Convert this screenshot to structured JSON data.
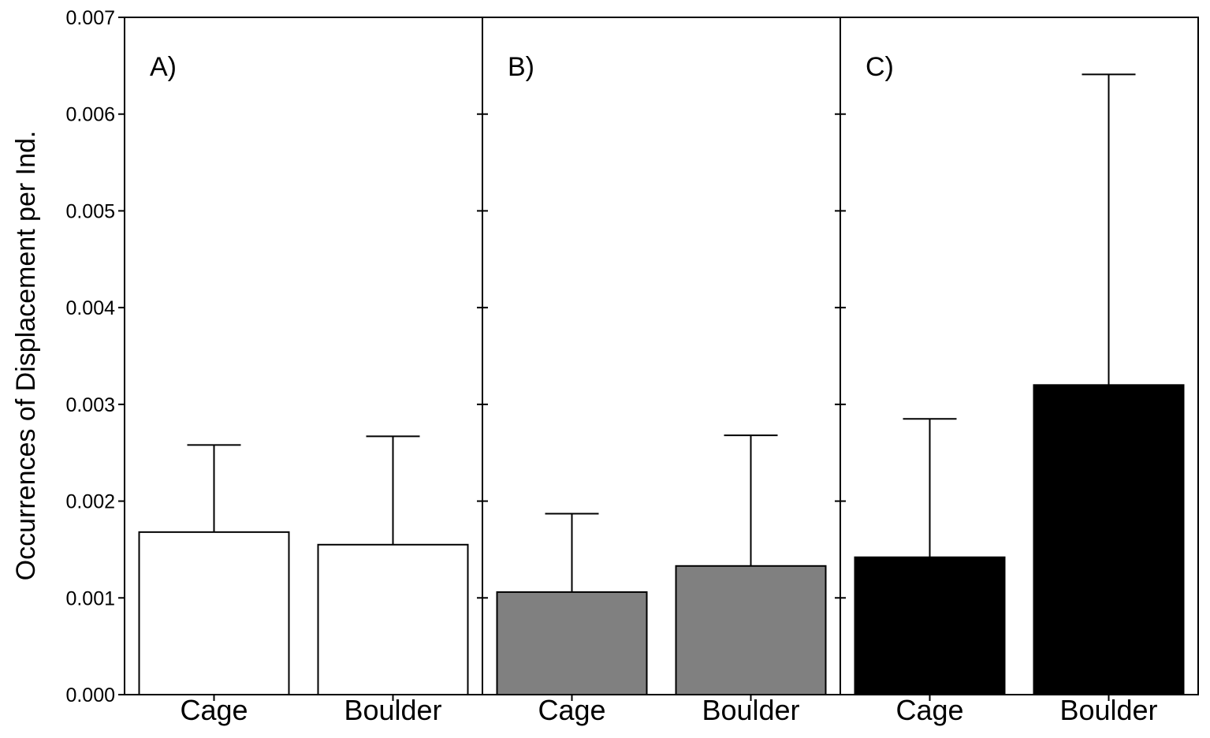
{
  "chart_data": {
    "type": "bar",
    "ylabel": "Occurrences of Displacement per Ind.",
    "ylim": [
      0,
      0.007
    ],
    "yticks": [
      "0.000",
      "0.001",
      "0.002",
      "0.003",
      "0.004",
      "0.005",
      "0.006",
      "0.007"
    ],
    "panels": [
      {
        "label": "A)",
        "fill": "#ffffff",
        "categories": [
          "Cage",
          "Boulder"
        ],
        "values": [
          0.00168,
          0.00155
        ],
        "error_upper": [
          0.00258,
          0.00267
        ]
      },
      {
        "label": "B)",
        "fill": "#808080",
        "categories": [
          "Cage",
          "Boulder"
        ],
        "values": [
          0.00106,
          0.00133
        ],
        "error_upper": [
          0.00187,
          0.00268
        ]
      },
      {
        "label": "C)",
        "fill": "#000000",
        "categories": [
          "Cage",
          "Boulder"
        ],
        "values": [
          0.00142,
          0.0032
        ],
        "error_upper": [
          0.00285,
          0.00641
        ]
      }
    ]
  }
}
